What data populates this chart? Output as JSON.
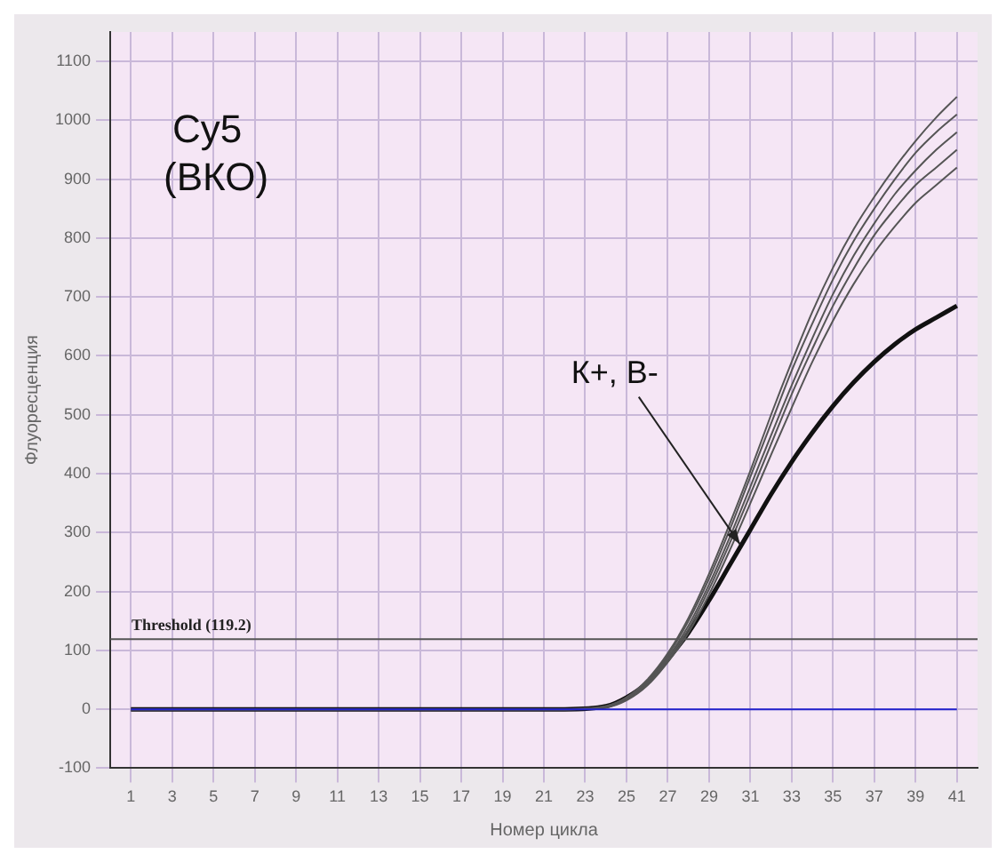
{
  "chart_data": {
    "type": "line",
    "xlabel": "Номер цикла",
    "ylabel": "Флуоресценция",
    "x": [
      1,
      5,
      10,
      15,
      20,
      22,
      24,
      25,
      26,
      27,
      28,
      29,
      30,
      31,
      32,
      33,
      34,
      35,
      36,
      37,
      38,
      39,
      40,
      41
    ],
    "series": [
      {
        "color": "#2222cc",
        "values": [
          0,
          0,
          0,
          0,
          0,
          0,
          0,
          0,
          0,
          0,
          0,
          0,
          0,
          0,
          0,
          0,
          0,
          0,
          0,
          0,
          0,
          0,
          0,
          0
        ]
      },
      {
        "color": "#555555",
        "values": [
          0,
          0,
          0,
          0,
          0,
          0,
          5,
          20,
          50,
          95,
          155,
          230,
          315,
          405,
          500,
          590,
          675,
          750,
          815,
          870,
          920,
          965,
          1005,
          1040
        ]
      },
      {
        "color": "#555555",
        "values": [
          0,
          0,
          0,
          0,
          0,
          0,
          5,
          20,
          48,
          92,
          150,
          222,
          305,
          395,
          485,
          575,
          655,
          730,
          795,
          850,
          900,
          945,
          980,
          1010
        ]
      },
      {
        "color": "#555555",
        "values": [
          0,
          0,
          0,
          0,
          0,
          0,
          4,
          18,
          45,
          88,
          142,
          212,
          292,
          378,
          465,
          550,
          630,
          705,
          770,
          825,
          875,
          915,
          950,
          980
        ]
      },
      {
        "color": "#555555",
        "values": [
          0,
          0,
          0,
          0,
          0,
          0,
          4,
          17,
          42,
          84,
          136,
          204,
          282,
          365,
          450,
          535,
          612,
          685,
          748,
          805,
          850,
          890,
          920,
          950
        ]
      },
      {
        "color": "#555555",
        "values": [
          0,
          0,
          0,
          0,
          0,
          0,
          3,
          15,
          40,
          80,
          130,
          195,
          270,
          350,
          432,
          512,
          590,
          660,
          722,
          775,
          820,
          860,
          890,
          920
        ]
      },
      {
        "color": "#111111",
        "values": [
          0,
          0,
          0,
          0,
          0,
          0,
          5,
          20,
          45,
          85,
          130,
          185,
          245,
          305,
          365,
          420,
          470,
          515,
          555,
          590,
          620,
          645,
          665,
          685
        ]
      }
    ],
    "xlim": [
      0,
      42
    ],
    "xticks": [
      1,
      3,
      5,
      7,
      9,
      11,
      13,
      15,
      17,
      19,
      21,
      23,
      25,
      27,
      29,
      31,
      33,
      35,
      37,
      39,
      41
    ],
    "ylim": [
      -100,
      1150
    ],
    "yticks": [
      -100,
      0,
      100,
      200,
      300,
      400,
      500,
      600,
      700,
      800,
      900,
      1000,
      1100
    ],
    "grid": true,
    "legend": false,
    "marker": "none",
    "line_style": "solid",
    "ref_lines": [
      {
        "axis": "y",
        "value": 119.2,
        "label": "Threshold (119.2)",
        "color": "#555555"
      }
    ],
    "annotations": [
      "Cy5\n(ВКО)",
      {
        "text": "К+, В-",
        "x": 30.5,
        "y": 280
      }
    ]
  }
}
